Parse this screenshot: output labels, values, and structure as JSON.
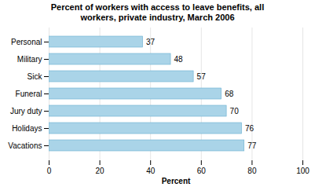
{
  "chart_data": {
    "type": "bar",
    "orientation": "horizontal",
    "title": "Percent of workers with access to leave benefits, all\nworkers, private industry, March 2006",
    "categories": [
      "Vacations",
      "Holidays",
      "Jury duty",
      "Funeral",
      "Sick",
      "Military",
      "Personal"
    ],
    "values": [
      77,
      76,
      70,
      68,
      57,
      48,
      37
    ],
    "color": "#aad4e8",
    "xlabel": "Percent",
    "xlim": [
      0,
      100
    ],
    "xticks": [
      0,
      20,
      40,
      60,
      80,
      100
    ],
    "grid": true,
    "data_labels": true
  }
}
